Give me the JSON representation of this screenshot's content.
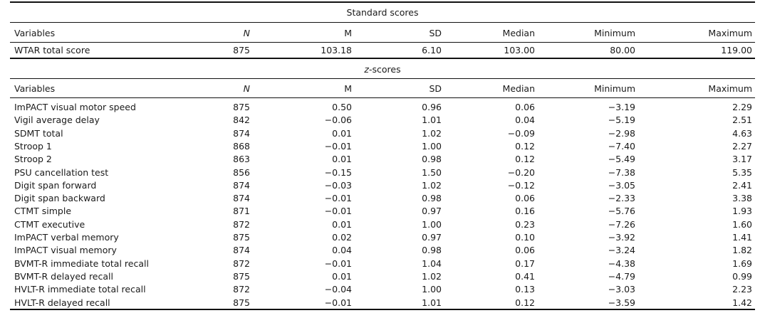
{
  "standard": {
    "title": "Standard scores",
    "headers": [
      "Variables",
      "N",
      "M",
      "SD",
      "Median",
      "Minimum",
      "Maximum"
    ],
    "rows": [
      [
        "WTAR total score",
        "875",
        "103.18",
        "6.10",
        "103.00",
        "80.00",
        "119.00"
      ]
    ]
  },
  "zscores": {
    "title_prefix": "z",
    "title_suffix": "-scores",
    "headers": [
      "Variables",
      "N",
      "M",
      "SD",
      "Median",
      "Minimum",
      "Maximum"
    ],
    "rows": [
      [
        "ImPACT visual motor speed",
        "875",
        "0.50",
        "0.96",
        "0.06",
        "−3.19",
        "2.29"
      ],
      [
        "Vigil average delay",
        "842",
        "−0.06",
        "1.01",
        "0.04",
        "−5.19",
        "2.51"
      ],
      [
        "SDMT total",
        "874",
        "0.01",
        "1.02",
        "−0.09",
        "−2.98",
        "4.63"
      ],
      [
        "Stroop 1",
        "868",
        "−0.01",
        "1.00",
        "0.12",
        "−7.40",
        "2.27"
      ],
      [
        "Stroop 2",
        "863",
        "0.01",
        "0.98",
        "0.12",
        "−5.49",
        "3.17"
      ],
      [
        "PSU cancellation test",
        "856",
        "−0.15",
        "1.50",
        "−0.20",
        "−7.38",
        "5.35"
      ],
      [
        "Digit span forward",
        "874",
        "−0.03",
        "1.02",
        "−0.12",
        "−3.05",
        "2.41"
      ],
      [
        "Digit span backward",
        "874",
        "−0.01",
        "0.98",
        "0.06",
        "−2.33",
        "3.38"
      ],
      [
        "CTMT simple",
        "871",
        "−0.01",
        "0.97",
        "0.16",
        "−5.76",
        "1.93"
      ],
      [
        "CTMT executive",
        "872",
        "0.01",
        "1.00",
        "0.23",
        "−7.26",
        "1.60"
      ],
      [
        "ImPACT verbal memory",
        "875",
        "0.02",
        "0.97",
        "0.10",
        "−3.92",
        "1.41"
      ],
      [
        "ImPACT visual memory",
        "874",
        "0.04",
        "0.98",
        "0.06",
        "−3.24",
        "1.82"
      ],
      [
        "BVMT-R immediate total recall",
        "872",
        "−0.01",
        "1.04",
        "0.17",
        "−4.38",
        "1.69"
      ],
      [
        "BVMT-R delayed recall",
        "875",
        "0.01",
        "1.02",
        "0.41",
        "−4.79",
        "0.99"
      ],
      [
        "HVLT-R immediate total recall",
        "872",
        "−0.04",
        "1.00",
        "0.13",
        "−3.03",
        "2.23"
      ],
      [
        "HVLT-R delayed recall",
        "875",
        "−0.01",
        "1.01",
        "0.12",
        "−3.59",
        "1.42"
      ]
    ]
  }
}
